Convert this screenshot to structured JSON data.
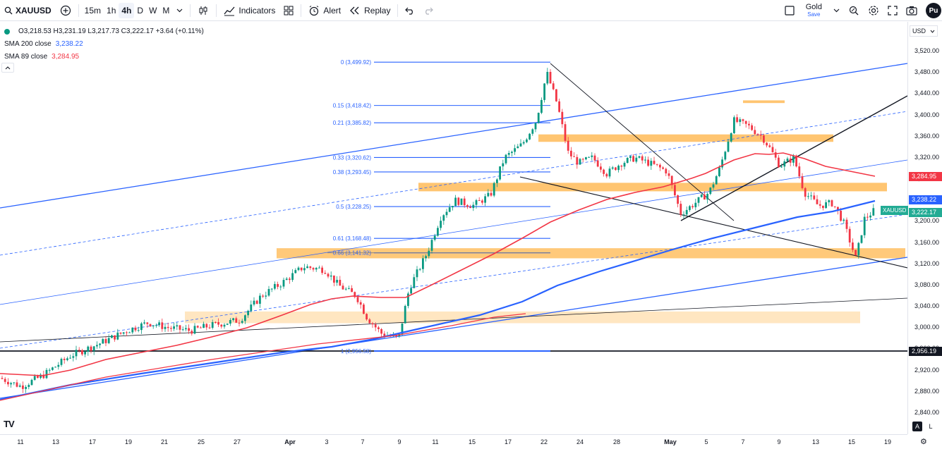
{
  "toolbar": {
    "symbol": "XAUUSD",
    "timeframes": [
      "15m",
      "1h",
      "4h",
      "D",
      "W",
      "M"
    ],
    "active_timeframe": "4h",
    "indicators_label": "Indicators",
    "alert_label": "Alert",
    "replay_label": "Replay",
    "layout_name": "Gold",
    "layout_status": "Save",
    "publish_label": "Pu"
  },
  "legend": {
    "ohlc": "O3,218.53 H3,231.19 L3,217.73 C3,222.17 +3.64 (+0.11%)",
    "sma200_label": "SMA 200 close",
    "sma200_value": "3,238.22",
    "sma89_label": "SMA 89 close",
    "sma89_value": "3,284.95",
    "sma200_color": "#2962ff",
    "sma89_color": "#f23645"
  },
  "currency": "USD",
  "price_axis": {
    "ticks": [
      "3,520.00",
      "3,480.00",
      "3,440.00",
      "3,400.00",
      "3,360.00",
      "3,320.00",
      "3,280.00",
      "3,240.00",
      "3,200.00",
      "3,160.00",
      "3,120.00",
      "3,080.00",
      "3,040.00",
      "3,000.00",
      "2,960.00",
      "2,920.00",
      "2,880.00",
      "2,840.00"
    ],
    "badges": [
      {
        "text": "3,284.95",
        "color": "#f23645"
      },
      {
        "text": "3,238.22",
        "color": "#2962ff"
      },
      {
        "text": "3,222.17",
        "color": "#22ab94"
      },
      {
        "text": "2,956.19",
        "color": "#131722"
      }
    ],
    "symbol_label": "XAUUSD"
  },
  "time_axis": {
    "ticks": [
      "11",
      "13",
      "17",
      "19",
      "21",
      "25",
      "27",
      "Apr",
      "3",
      "7",
      "9",
      "11",
      "15",
      "17",
      "22",
      "24",
      "28",
      "May",
      "5",
      "7",
      "9",
      "13",
      "15",
      "19"
    ]
  },
  "fib_levels": [
    {
      "label": "0 (3,499.92)",
      "price": 3499.92
    },
    {
      "label": "0.15 (3,418.42)",
      "price": 3418.42
    },
    {
      "label": "0.21 (3,385.82)",
      "price": 3385.82
    },
    {
      "label": "0.33 (3,320.62)",
      "price": 3320.62
    },
    {
      "label": "0.38 (3,293.45)",
      "price": 3293.45
    },
    {
      "label": "0.5 (3,228.25)",
      "price": 3228.25
    },
    {
      "label": "0.61 (3,168.48)",
      "price": 3168.48
    },
    {
      "label": "0.66 (3,141.32)",
      "price": 3141.32
    },
    {
      "label": "1 (2,956.58)",
      "price": 2956.58
    }
  ],
  "bottom": {
    "logo": "TV",
    "auto_label": "A",
    "log_label": "L"
  },
  "colors": {
    "up": "#089981",
    "down": "#f23645",
    "zone": "#ffb74d",
    "channel": "#2962ff"
  }
}
